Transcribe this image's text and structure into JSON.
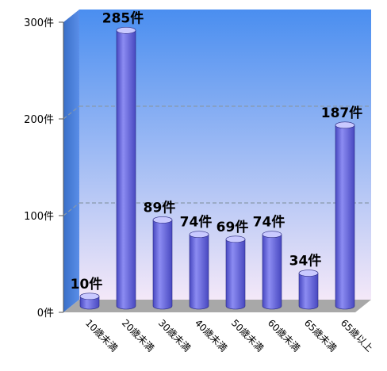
{
  "chart_data": {
    "type": "bar",
    "title": "",
    "xlabel": "",
    "ylabel": "",
    "categories": [
      "10歳未満",
      "20歳未満",
      "30歳未満",
      "40歳未満",
      "50歳未満",
      "60歳未満",
      "65歳未満",
      "65歳以上"
    ],
    "values": [
      10,
      285,
      89,
      74,
      69,
      74,
      34,
      187
    ],
    "data_labels": [
      "10件",
      "285件",
      "89件",
      "74件",
      "69件",
      "74件",
      "34件",
      "187件"
    ],
    "ylim": [
      0,
      300
    ],
    "y_ticks": [
      0,
      100,
      200,
      300
    ],
    "y_tick_labels": [
      "0件",
      "100件",
      "200件",
      "300件"
    ],
    "grid": true,
    "legend": "none",
    "style": "3d-cylinder",
    "colors": {
      "bar": "#8c8cf2",
      "bar_dark": "#4848c0",
      "bar_top": "#c9c9ff",
      "wall_top": "#4a8ef0",
      "wall_bottom": "#f4e8f8",
      "floor": "#a8a8a8",
      "gridline": "#8899aa"
    }
  }
}
